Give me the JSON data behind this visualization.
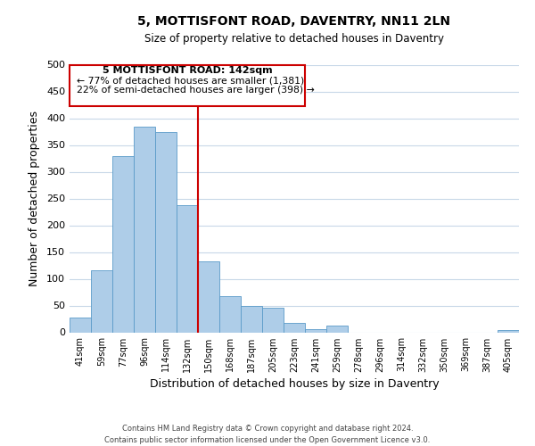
{
  "title": "5, MOTTISFONT ROAD, DAVENTRY, NN11 2LN",
  "subtitle": "Size of property relative to detached houses in Daventry",
  "xlabel": "Distribution of detached houses by size in Daventry",
  "ylabel": "Number of detached properties",
  "bar_labels": [
    "41sqm",
    "59sqm",
    "77sqm",
    "96sqm",
    "114sqm",
    "132sqm",
    "150sqm",
    "168sqm",
    "187sqm",
    "205sqm",
    "223sqm",
    "241sqm",
    "259sqm",
    "278sqm",
    "296sqm",
    "314sqm",
    "332sqm",
    "350sqm",
    "369sqm",
    "387sqm",
    "405sqm"
  ],
  "bar_values": [
    28,
    116,
    330,
    385,
    375,
    237,
    133,
    68,
    50,
    46,
    18,
    6,
    13,
    0,
    0,
    0,
    0,
    0,
    0,
    0,
    5
  ],
  "bar_color": "#aecde8",
  "bar_edge_color": "#5a9ac8",
  "vline_x": 5.5,
  "vline_color": "#cc0000",
  "ylim": [
    0,
    500
  ],
  "yticks": [
    0,
    50,
    100,
    150,
    200,
    250,
    300,
    350,
    400,
    450,
    500
  ],
  "annotation_line1": "5 MOTTISFONT ROAD: 142sqm",
  "annotation_line2": "← 77% of detached houses are smaller (1,381)",
  "annotation_line3": "22% of semi-detached houses are larger (398) →",
  "footer_line1": "Contains HM Land Registry data © Crown copyright and database right 2024.",
  "footer_line2": "Contains public sector information licensed under the Open Government Licence v3.0.",
  "background_color": "#ffffff",
  "grid_color": "#c8d8e8"
}
